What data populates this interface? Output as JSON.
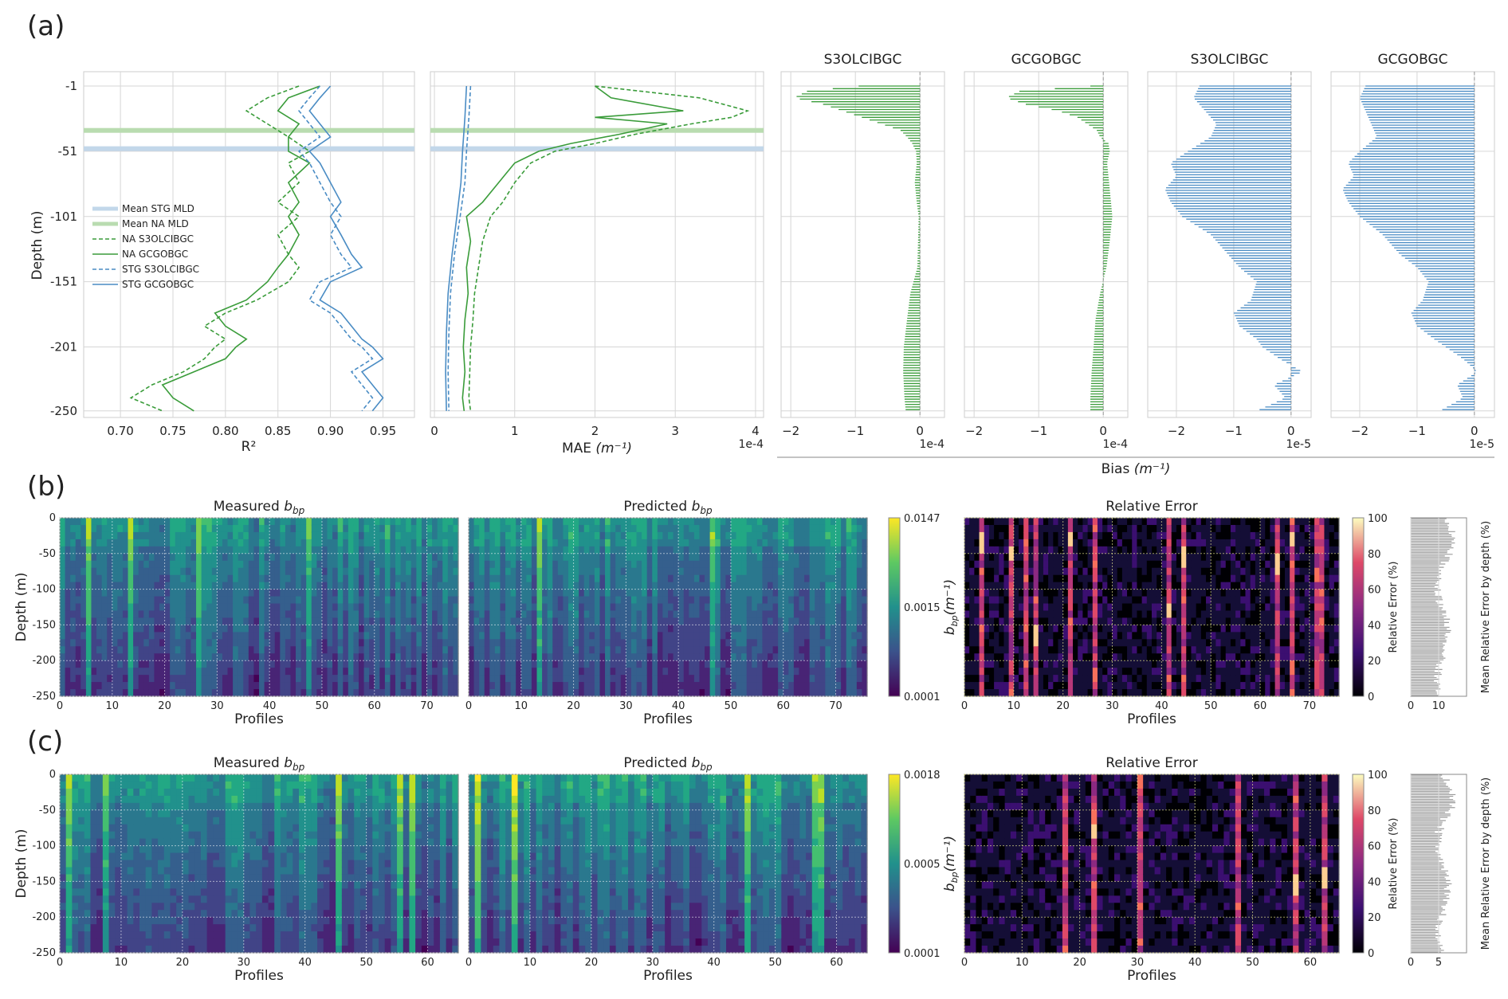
{
  "panels": {
    "a": "(a)",
    "b": "(b)",
    "c": "(c)"
  },
  "colors": {
    "green": "#3a9c3a",
    "blue": "#4a8cc4",
    "grid": "#d6d6d6",
    "spine": "#c8c8c8",
    "mld_green": "#b9dcb0",
    "mld_blue": "#c2d7ea"
  },
  "chart_data": [
    {
      "id": "a-r2",
      "type": "line",
      "xlabel": "R²",
      "ylabel": "Depth (m)",
      "xlim": [
        0.665,
        0.98
      ],
      "ylim": [
        -255,
        10
      ],
      "xticks": [
        "0.70",
        "0.75",
        "0.80",
        "0.85",
        "0.90",
        "0.95"
      ],
      "yticks": [
        "-1",
        "-51",
        "-101",
        "-151",
        "-201",
        "-250"
      ],
      "mld": {
        "na": -35,
        "stg": -49
      },
      "legend": [
        "Mean STG MLD",
        "Mean NA MLD",
        "NA S3OLCIBGC",
        "NA GCGOBGC",
        "STG S3OLCIBGC",
        "STG GCGOBGC"
      ],
      "series": [
        {
          "name": "NA S3OLCIBGC",
          "style": "dashed",
          "color": "green",
          "depth": [
            -1,
            -10,
            -20,
            -30,
            -40,
            -51,
            -60,
            -75,
            -90,
            -101,
            -115,
            -130,
            -140,
            -151,
            -165,
            -175,
            -185,
            -195,
            -201,
            -210,
            -220,
            -230,
            -240,
            -250
          ],
          "values": [
            0.87,
            0.84,
            0.82,
            0.84,
            0.86,
            0.88,
            0.86,
            0.87,
            0.85,
            0.87,
            0.85,
            0.86,
            0.87,
            0.86,
            0.83,
            0.8,
            0.78,
            0.8,
            0.79,
            0.78,
            0.76,
            0.73,
            0.71,
            0.74
          ]
        },
        {
          "name": "NA GCGOBGC",
          "style": "solid",
          "color": "green",
          "depth": [
            -1,
            -10,
            -20,
            -30,
            -40,
            -51,
            -60,
            -75,
            -90,
            -101,
            -115,
            -130,
            -140,
            -151,
            -165,
            -175,
            -185,
            -195,
            -201,
            -210,
            -220,
            -230,
            -240,
            -250
          ],
          "values": [
            0.89,
            0.86,
            0.85,
            0.87,
            0.86,
            0.86,
            0.88,
            0.86,
            0.87,
            0.86,
            0.87,
            0.86,
            0.85,
            0.84,
            0.82,
            0.79,
            0.8,
            0.82,
            0.81,
            0.8,
            0.77,
            0.74,
            0.75,
            0.77
          ]
        },
        {
          "name": "STG S3OLCIBGC",
          "style": "dashed",
          "color": "blue",
          "depth": [
            -1,
            -10,
            -20,
            -30,
            -40,
            -51,
            -60,
            -75,
            -90,
            -101,
            -115,
            -130,
            -140,
            -151,
            -165,
            -175,
            -185,
            -195,
            -201,
            -210,
            -220,
            -230,
            -240,
            -250
          ],
          "values": [
            0.89,
            0.88,
            0.87,
            0.88,
            0.89,
            0.87,
            0.88,
            0.89,
            0.9,
            0.91,
            0.9,
            0.91,
            0.92,
            0.89,
            0.88,
            0.9,
            0.91,
            0.92,
            0.93,
            0.94,
            0.92,
            0.93,
            0.94,
            0.93
          ]
        },
        {
          "name": "STG GCGOBGC",
          "style": "solid",
          "color": "blue",
          "depth": [
            -1,
            -10,
            -20,
            -30,
            -40,
            -51,
            -60,
            -75,
            -90,
            -101,
            -115,
            -130,
            -140,
            -151,
            -165,
            -175,
            -185,
            -195,
            -201,
            -210,
            -220,
            -230,
            -240,
            -250
          ],
          "values": [
            0.9,
            0.89,
            0.88,
            0.89,
            0.9,
            0.88,
            0.89,
            0.9,
            0.91,
            0.9,
            0.91,
            0.92,
            0.93,
            0.9,
            0.89,
            0.91,
            0.92,
            0.93,
            0.94,
            0.95,
            0.93,
            0.94,
            0.95,
            0.94
          ]
        }
      ]
    },
    {
      "id": "a-mae",
      "type": "line",
      "xlabel": "MAE",
      "xunit": "(m⁻¹)",
      "scale_note": "1e-4",
      "xlim": [
        -0.05,
        4.1
      ],
      "ylim": [
        -255,
        10
      ],
      "xticks": [
        "0",
        "1",
        "2",
        "3",
        "4"
      ],
      "mld": {
        "na": -35,
        "stg": -49
      },
      "series": [
        {
          "name": "NA S3OLCIBGC",
          "style": "dashed",
          "color": "green",
          "depth": [
            -1,
            -10,
            -20,
            -25,
            -30,
            -38,
            -45,
            -51,
            -60,
            -75,
            -90,
            -101,
            -120,
            -140,
            -160,
            -180,
            -201,
            -220,
            -240,
            -250
          ],
          "values": [
            2.0,
            3.3,
            3.9,
            3.7,
            3.2,
            2.5,
            2.0,
            1.5,
            1.2,
            1.0,
            0.85,
            0.7,
            0.6,
            0.55,
            0.5,
            0.48,
            0.45,
            0.44,
            0.43,
            0.45
          ]
        },
        {
          "name": "NA GCGOBGC",
          "style": "solid",
          "color": "green",
          "depth": [
            -1,
            -10,
            -20,
            -25,
            -30,
            -38,
            -45,
            -51,
            -60,
            -75,
            -90,
            -101,
            -120,
            -140,
            -160,
            -180,
            -201,
            -220,
            -240,
            -250
          ],
          "values": [
            2.0,
            2.2,
            3.1,
            2.0,
            2.9,
            2.3,
            1.7,
            1.3,
            1.0,
            0.8,
            0.6,
            0.4,
            0.45,
            0.4,
            0.42,
            0.38,
            0.36,
            0.38,
            0.35,
            0.37
          ]
        },
        {
          "name": "STG S3OLCIBGC",
          "style": "dashed",
          "color": "blue",
          "depth": [
            -1,
            -25,
            -51,
            -75,
            -101,
            -130,
            -160,
            -190,
            -220,
            -250
          ],
          "values": [
            0.45,
            0.43,
            0.4,
            0.38,
            0.32,
            0.25,
            0.2,
            0.18,
            0.17,
            0.18
          ]
        },
        {
          "name": "STG GCGOBGC",
          "style": "solid",
          "color": "blue",
          "depth": [
            -1,
            -25,
            -51,
            -75,
            -101,
            -130,
            -160,
            -190,
            -220,
            -250
          ],
          "values": [
            0.4,
            0.38,
            0.35,
            0.33,
            0.28,
            0.22,
            0.17,
            0.15,
            0.14,
            0.15
          ]
        }
      ]
    },
    {
      "id": "a-bias-na-s3",
      "type": "bar",
      "title": "S3OLCIBGC",
      "color": "green",
      "scale_note": "1e-4",
      "xlim": [
        -2.15,
        0.38
      ],
      "xticks": [
        "−2",
        "−1",
        "0"
      ],
      "depth": [
        -1,
        -5,
        -10,
        -15,
        -20,
        -25,
        -30,
        -35,
        -40,
        -45,
        -51,
        -60,
        -75,
        -90,
        -101,
        -120,
        -140,
        -160,
        -180,
        -201,
        -220,
        -240,
        -250
      ],
      "values": [
        -0.95,
        -1.75,
        -1.95,
        -1.5,
        -1.2,
        -0.9,
        -0.6,
        -0.3,
        -0.2,
        -0.12,
        -0.06,
        -0.05,
        -0.08,
        -0.05,
        -0.02,
        -0.03,
        -0.04,
        -0.15,
        -0.2,
        -0.25,
        -0.26,
        -0.24,
        -0.22
      ]
    },
    {
      "id": "a-bias-na-gc",
      "type": "bar",
      "title": "GCGOBGC",
      "color": "green",
      "scale_note": "1e-4",
      "xlim": [
        -2.15,
        0.38
      ],
      "xticks": [
        "−2",
        "−1",
        "0"
      ],
      "depth": [
        -1,
        -5,
        -10,
        -15,
        -20,
        -25,
        -30,
        -35,
        -40,
        -45,
        -51,
        -60,
        -75,
        -90,
        -101,
        -120,
        -140,
        -160,
        -180,
        -201,
        -220,
        -240,
        -250
      ],
      "values": [
        -0.2,
        -1.3,
        -1.5,
        -1.2,
        -0.7,
        -0.4,
        -0.25,
        -0.1,
        -0.05,
        0.08,
        0.1,
        0.06,
        0.09,
        0.12,
        0.14,
        0.1,
        0.05,
        -0.05,
        -0.12,
        -0.15,
        -0.18,
        -0.2,
        -0.2
      ]
    },
    {
      "id": "a-bias-stg-s3",
      "type": "bar",
      "title": "S3OLCIBGC",
      "color": "blue",
      "scale_note": "1e-5",
      "xlim": [
        -2.5,
        0.35
      ],
      "xticks": [
        "−2",
        "−1",
        "0"
      ],
      "depth": [
        -1,
        -10,
        -20,
        -30,
        -40,
        -51,
        -60,
        -70,
        -80,
        -90,
        -101,
        -115,
        -130,
        -140,
        -151,
        -165,
        -175,
        -185,
        -195,
        -201,
        -210,
        -220,
        -230,
        -240,
        -250
      ],
      "values": [
        -1.6,
        -1.7,
        -1.5,
        -1.3,
        -1.4,
        -1.8,
        -2.1,
        -2.0,
        -2.2,
        -2.1,
        -1.9,
        -1.4,
        -1.1,
        -0.9,
        -0.6,
        -0.7,
        -1.0,
        -0.9,
        -0.6,
        -0.5,
        -0.2,
        0.2,
        -0.3,
        -0.1,
        -0.6
      ]
    },
    {
      "id": "a-bias-stg-gc",
      "type": "bar",
      "title": "GCGOBGC",
      "color": "blue",
      "scale_note": "1e-5",
      "xlim": [
        -2.5,
        0.35
      ],
      "xticks": [
        "−2",
        "−1",
        "0"
      ],
      "depth": [
        -1,
        -10,
        -20,
        -30,
        -40,
        -51,
        -60,
        -70,
        -80,
        -90,
        -101,
        -115,
        -130,
        -140,
        -151,
        -165,
        -175,
        -185,
        -195,
        -201,
        -210,
        -220,
        -230,
        -240,
        -250
      ],
      "values": [
        -1.9,
        -2.0,
        -1.9,
        -1.8,
        -1.7,
        -2.0,
        -2.2,
        -2.1,
        -2.3,
        -2.2,
        -2.0,
        -1.6,
        -1.3,
        -1.0,
        -0.8,
        -0.9,
        -1.1,
        -1.0,
        -0.7,
        -0.5,
        -0.2,
        0.05,
        -0.3,
        -0.2,
        -0.6
      ]
    },
    {
      "id": "b-heatmaps",
      "type": "heatmap",
      "titles": {
        "measured": "Measured",
        "predicted": "Predicted",
        "b": "b",
        "bsub": "bp",
        "relerr": "Relative Error"
      },
      "ylabel": "Depth (m)",
      "xlabel": "Profiles",
      "xticks": [
        "0",
        "10",
        "20",
        "30",
        "40",
        "50",
        "60",
        "70"
      ],
      "xmax": 76,
      "yticks": [
        "0",
        "-50",
        "-100",
        "-150",
        "-200",
        "-250"
      ],
      "colorbar": {
        "ticks": [
          "0.0147",
          "0.0015",
          "0.0001"
        ],
        "label_main": "b",
        "label_sub": "bp",
        "label_unit": "(m⁻¹)"
      },
      "err_colorbar": {
        "ticks": [
          "100",
          "80",
          "60",
          "40",
          "20",
          "0"
        ],
        "label": "Relative Error (%)"
      },
      "profile_bar": {
        "xticks": [
          "0",
          "10"
        ],
        "label": "Mean Relative Error by depth (%)",
        "xmax": 20
      },
      "bright_measured": [
        13,
        5,
        26,
        47
      ],
      "bright_predicted": [
        13,
        46
      ],
      "err_hot_columns": [
        3,
        9,
        12,
        14,
        21,
        26,
        41,
        44,
        63,
        66,
        71,
        72
      ],
      "err_hot_spots": [
        [
          3,
          0.12
        ],
        [
          9,
          0.18
        ],
        [
          14,
          0.65
        ],
        [
          21,
          0.1
        ],
        [
          41,
          0.5
        ],
        [
          44,
          0.2
        ],
        [
          63,
          0.25
        ],
        [
          66,
          0.1
        ]
      ]
    },
    {
      "id": "c-heatmaps",
      "type": "heatmap",
      "titles": {
        "measured": "Measured",
        "predicted": "Predicted",
        "b": "b",
        "bsub": "bp",
        "relerr": "Relative Error"
      },
      "ylabel": "Depth (m)",
      "xlabel": "Profiles",
      "xticks": [
        "0",
        "10",
        "20",
        "30",
        "40",
        "50",
        "60"
      ],
      "xmax": 65,
      "yticks": [
        "0",
        "-50",
        "-100",
        "-150",
        "-200",
        "-250"
      ],
      "colorbar": {
        "ticks": [
          "0.0018",
          "0.0005",
          "0.0001"
        ],
        "label_main": "b",
        "label_sub": "bp",
        "label_unit": "(m⁻¹)"
      },
      "err_colorbar": {
        "ticks": [
          "100",
          "80",
          "60",
          "40",
          "20",
          "0"
        ],
        "label": "Relative Error (%)"
      },
      "profile_bar": {
        "xticks": [
          "0",
          "5"
        ],
        "label": "Mean Relative Error by depth (%)",
        "xmax": 10
      },
      "bright_measured": [
        57,
        55,
        45,
        7,
        1
      ],
      "bright_predicted": [
        57,
        56,
        45,
        7,
        1
      ],
      "err_hot_columns": [
        17,
        22,
        30,
        47,
        57,
        62
      ],
      "err_hot_spots": [
        [
          22,
          0.3
        ],
        [
          57,
          0.6
        ],
        [
          62,
          0.55
        ]
      ]
    }
  ],
  "bias_group_label": "Bias",
  "bias_unit": "(m⁻¹)"
}
